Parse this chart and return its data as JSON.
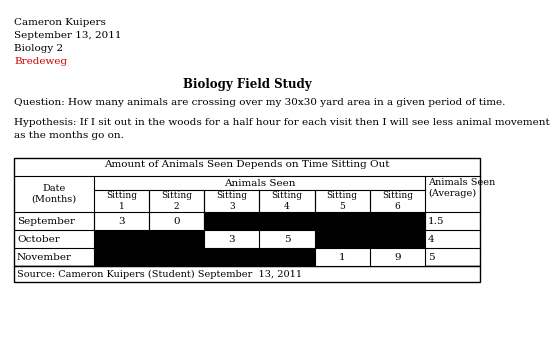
{
  "header_lines": [
    "Cameron Kuipers",
    "September 13, 2011",
    "Biology 2",
    "Bredeweg"
  ],
  "bredeweg_color": "#cc0000",
  "title": "Biology Field Study",
  "question": "Question: How many animals are crossing over my 30x30 yard area in a given period of time.",
  "hypothesis_line1": "Hypothesis: If I sit out in the woods for a half hour for each visit then I will see less animal movement",
  "hypothesis_line2": "as the months go on.",
  "source": "Source: Cameron Kuipers (Student) September  13, 2011",
  "table_title": "Amount of Animals Seen Depends on Time Sitting Out",
  "col_header_date": "Date\n(Months)",
  "col_header_animals": "Animals Seen",
  "col_header_avg": "Animals Seen\n(Average)",
  "sub_headers": [
    "Sitting\n1",
    "Sitting\n2",
    "Sitting\n3",
    "Sitting\n4",
    "Sitting\n5",
    "Sitting\n6"
  ],
  "rows": [
    {
      "month": "September",
      "values": [
        "3",
        "0",
        "",
        "",
        "",
        ""
      ],
      "black_cells": [
        2,
        3,
        4,
        5
      ],
      "average": "1.5"
    },
    {
      "month": "October",
      "values": [
        "",
        "",
        "3",
        "5",
        "",
        ""
      ],
      "black_cells": [
        0,
        1,
        4,
        5
      ],
      "average": "4"
    },
    {
      "month": "November",
      "values": [
        "",
        "",
        "",
        "",
        "1",
        "9"
      ],
      "black_cells": [
        0,
        1,
        2,
        3
      ],
      "average": "5"
    }
  ],
  "bg_color": "#ffffff",
  "text_color": "#000000"
}
